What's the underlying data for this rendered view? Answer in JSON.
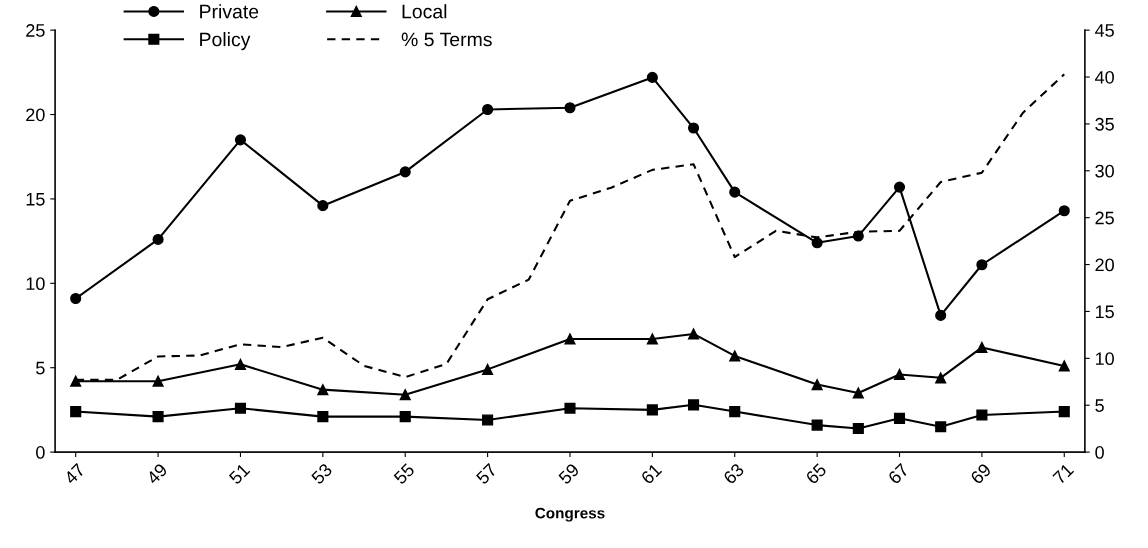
{
  "chart_data": {
    "type": "line",
    "xlabel": "Congress",
    "xlim": [
      46.5,
      71.5
    ],
    "xticks": [
      47,
      49,
      51,
      53,
      55,
      57,
      59,
      61,
      63,
      65,
      67,
      69,
      71
    ],
    "ylim": [
      0,
      25
    ],
    "yticks": [
      0,
      5,
      10,
      15,
      20,
      25
    ],
    "y2lim": [
      0,
      45
    ],
    "y2ticks": [
      0,
      5,
      10,
      15,
      20,
      25,
      30,
      35,
      40,
      45
    ],
    "grid": false,
    "legend": "top left",
    "series": [
      {
        "name": "Private",
        "color": "#000000",
        "marker": "circle",
        "line_style": "solid",
        "x": [
          47,
          49,
          51,
          53,
          55,
          57,
          59,
          61,
          62,
          63,
          65,
          66,
          67,
          68,
          69,
          71
        ],
        "values": [
          9.1,
          12.6,
          18.5,
          14.6,
          16.6,
          20.3,
          20.4,
          22.2,
          19.2,
          15.4,
          12.4,
          12.8,
          15.7,
          8.1,
          11.1,
          14.3
        ]
      },
      {
        "name": "Policy",
        "color": "#000000",
        "marker": "square",
        "line_style": "solid",
        "x": [
          47,
          49,
          51,
          53,
          55,
          57,
          59,
          61,
          62,
          63,
          65,
          66,
          67,
          68,
          69,
          71
        ],
        "values": [
          2.4,
          2.1,
          2.6,
          2.1,
          2.1,
          1.9,
          2.6,
          2.5,
          2.8,
          2.4,
          1.6,
          1.4,
          2.0,
          1.5,
          2.2,
          2.4
        ]
      },
      {
        "name": "Local",
        "color": "#000000",
        "marker": "triangle",
        "line_style": "solid",
        "x": [
          47,
          49,
          51,
          53,
          55,
          57,
          59,
          61,
          62,
          63,
          65,
          66,
          67,
          68,
          69,
          71
        ],
        "values": [
          4.2,
          4.2,
          5.2,
          3.7,
          3.4,
          4.9,
          6.7,
          6.7,
          7.0,
          5.7,
          4.0,
          3.5,
          4.6,
          4.4,
          6.2,
          5.1
        ]
      },
      {
        "name": "% 5 Terms",
        "color": "#000000",
        "marker": "none",
        "line_style": "dashed",
        "axis": "y2",
        "x": [
          47,
          48,
          49,
          50,
          51,
          52,
          53,
          54,
          55,
          56,
          57,
          58,
          59,
          60,
          61,
          62,
          63,
          64,
          65,
          66,
          67,
          68,
          69,
          70,
          71
        ],
        "values": [
          7.7,
          7.7,
          10.2,
          10.3,
          11.5,
          11.2,
          12.2,
          9.2,
          8.0,
          9.4,
          16.3,
          18.4,
          26.8,
          28.2,
          30.1,
          30.7,
          20.8,
          23.6,
          22.9,
          23.5,
          23.6,
          28.8,
          29.8,
          36.2,
          40.3
        ]
      }
    ]
  }
}
